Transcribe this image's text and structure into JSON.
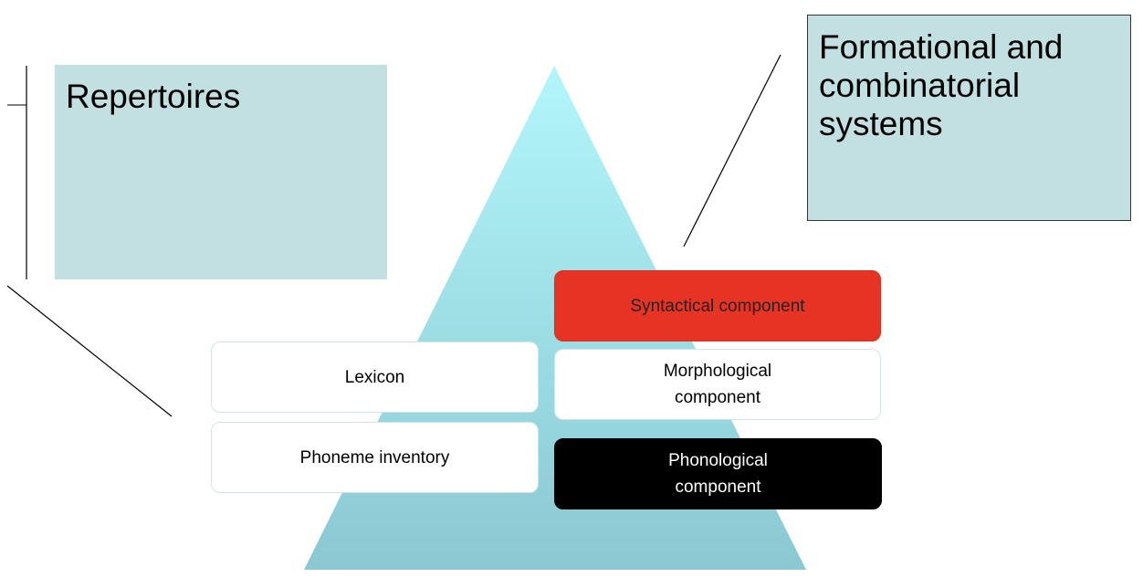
{
  "repertoires": {
    "title": "Repertoires"
  },
  "systems": {
    "title": "Formational and combinatorial systems"
  },
  "components": {
    "lexicon": "Lexicon",
    "phoneme_inventory": "Phoneme inventory",
    "syntactical": "Syntactical component",
    "morphological": "Morphological component",
    "phonological": "Phonological component"
  },
  "colors": {
    "pyramid_top": "#b2f6fa",
    "pyramid_bottom": "#8ac8d2",
    "callout_fill": "#c2e0e2",
    "syntactical_fill": "#e73323",
    "phonological_fill": "#000000"
  }
}
